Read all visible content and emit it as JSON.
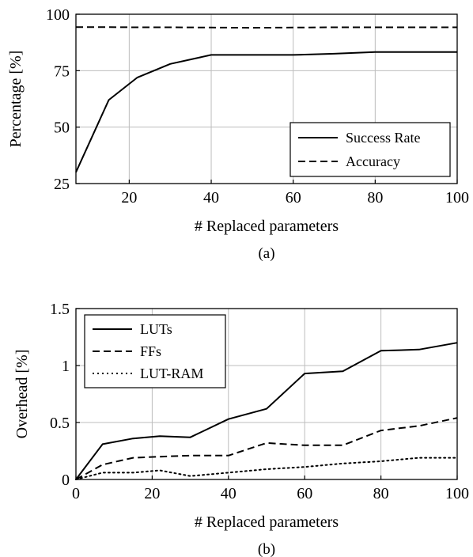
{
  "chart_data": [
    {
      "type": "line",
      "caption": "(a)",
      "xlabel": "# Replaced parameters",
      "ylabel": "Percentage [%]",
      "xlim": [
        7,
        100
      ],
      "ylim": [
        25,
        100
      ],
      "xticks": [
        20,
        40,
        60,
        80,
        100
      ],
      "yticks": [
        25,
        50,
        75,
        100
      ],
      "grid": true,
      "legend_position": "bottom-right",
      "series": [
        {
          "name": "Success Rate",
          "style": "solid",
          "x": [
            7,
            15,
            22,
            30,
            40,
            50,
            60,
            70,
            80,
            90,
            100
          ],
          "y": [
            30,
            62,
            72,
            78,
            82,
            82,
            82,
            82.5,
            83.3,
            83.3,
            83.3
          ]
        },
        {
          "name": "Accuracy",
          "style": "dashed",
          "x": [
            7,
            15,
            22,
            30,
            40,
            50,
            60,
            70,
            80,
            90,
            100
          ],
          "y": [
            94.3,
            94.3,
            94.2,
            94.2,
            94.1,
            94.0,
            94.1,
            94.2,
            94.2,
            94.2,
            94.2
          ]
        }
      ]
    },
    {
      "type": "line",
      "caption": "(b)",
      "xlabel": "# Replaced parameters",
      "ylabel": "Overhead [%]",
      "xlim": [
        0,
        100
      ],
      "ylim": [
        0,
        1.5
      ],
      "xticks": [
        0,
        20,
        40,
        60,
        80,
        100
      ],
      "yticks": [
        0,
        0.5,
        1,
        1.5
      ],
      "grid": true,
      "legend_position": "top-left",
      "series": [
        {
          "name": "LUTs",
          "style": "solid",
          "x": [
            0,
            7,
            15,
            22,
            30,
            40,
            50,
            60,
            70,
            80,
            90,
            100
          ],
          "y": [
            0,
            0.31,
            0.36,
            0.38,
            0.37,
            0.53,
            0.62,
            0.93,
            0.95,
            1.13,
            1.14,
            1.2
          ]
        },
        {
          "name": "FFs",
          "style": "dashed",
          "x": [
            0,
            7,
            15,
            22,
            30,
            40,
            50,
            60,
            70,
            80,
            90,
            100
          ],
          "y": [
            0,
            0.13,
            0.19,
            0.2,
            0.21,
            0.21,
            0.32,
            0.3,
            0.3,
            0.43,
            0.47,
            0.54
          ]
        },
        {
          "name": "LUT-RAM",
          "style": "dotted",
          "x": [
            0,
            7,
            15,
            22,
            30,
            40,
            50,
            60,
            70,
            80,
            90,
            100
          ],
          "y": [
            0,
            0.06,
            0.06,
            0.08,
            0.03,
            0.06,
            0.09,
            0.11,
            0.14,
            0.16,
            0.19,
            0.19
          ]
        }
      ]
    }
  ]
}
